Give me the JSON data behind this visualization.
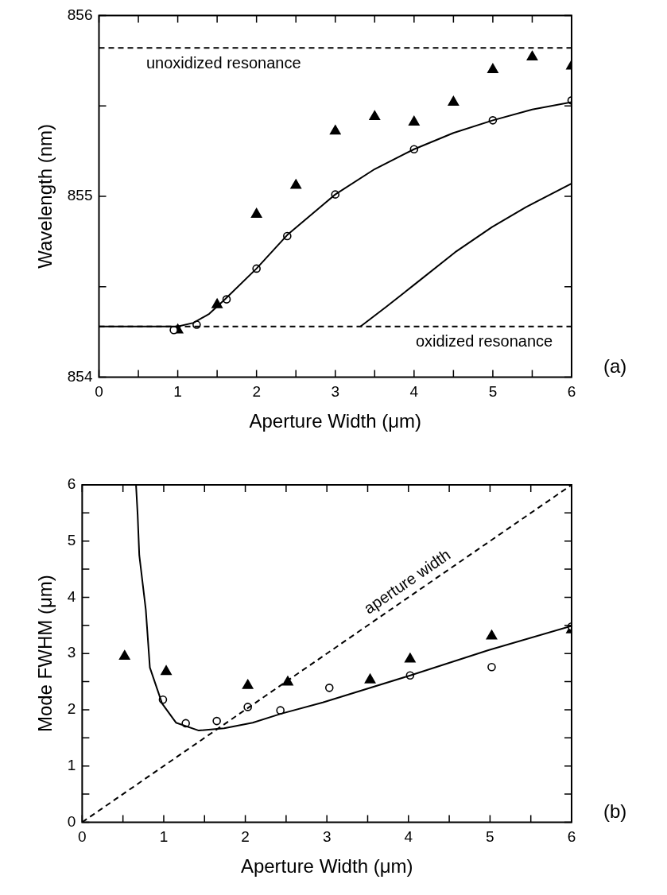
{
  "chart_data": [
    {
      "type": "scatter",
      "xlabel": "Aperture Width (μm)",
      "ylabel": "Wavelength (nm)",
      "xlim": [
        0,
        6
      ],
      "xticks": [
        0,
        {
          "value": 0.5,
          "label": null
        },
        1,
        {
          "value": 1.5,
          "label": null
        },
        2,
        {
          "value": 2.5,
          "label": null
        },
        3,
        {
          "value": 3.5,
          "label": null
        },
        4,
        {
          "value": 4.5,
          "label": null
        },
        5,
        {
          "value": 5.5,
          "label": null
        },
        6
      ],
      "ylim": [
        854,
        856
      ],
      "yticks": [
        854,
        {
          "value": 854.5,
          "label": null
        },
        855,
        {
          "value": 855.5,
          "label": null
        },
        856
      ],
      "series": [
        {
          "type": "line",
          "color": "#000000",
          "marker": "none",
          "line_style": "solid",
          "x": [
            0,
            1.0,
            1.2,
            1.4,
            1.6,
            2.0,
            2.4,
            3.0,
            3.5,
            4.0,
            4.5,
            5.0,
            5.5,
            6.0
          ],
          "values": [
            854.28,
            854.28,
            854.3,
            854.35,
            854.43,
            854.6,
            854.79,
            855.01,
            855.15,
            855.26,
            855.35,
            855.42,
            855.48,
            855.52
          ]
        },
        {
          "type": "line",
          "color": "#000000",
          "marker": "none",
          "line_style": "solid",
          "x": [
            3.32,
            3.65,
            4.0,
            4.52,
            4.99,
            5.42,
            6.0
          ],
          "values": [
            854.28,
            854.39,
            854.51,
            854.69,
            854.83,
            854.94,
            855.07
          ]
        },
        {
          "type": "scatter",
          "color": "#000000",
          "marker": "circle",
          "x": [
            0.95,
            1.24,
            1.62,
            2.0,
            2.39,
            3.0,
            4.0,
            5.0,
            6.0
          ],
          "values": [
            854.26,
            854.29,
            854.43,
            854.6,
            854.78,
            855.01,
            855.26,
            855.42,
            855.53
          ]
        },
        {
          "type": "scatter",
          "color": "#000000",
          "marker": "triangle",
          "x": [
            1.0,
            1.5,
            2.0,
            2.5,
            3.0,
            3.5,
            4.0,
            4.5,
            5.0,
            5.5,
            6.0
          ],
          "values": [
            854.26,
            854.4,
            854.9,
            855.06,
            855.36,
            855.44,
            855.41,
            855.52,
            855.7,
            855.77,
            855.72
          ]
        }
      ],
      "ref_lines": [
        {
          "axis": "y",
          "value": 855.82,
          "label": "unoxidized resonance",
          "line_style": "dashed",
          "color": "#000000"
        },
        {
          "axis": "y",
          "value": 854.28,
          "label": "oxidized resonance",
          "line_style": "dashed",
          "color": "#000000"
        }
      ],
      "annotations": [
        "(a)"
      ]
    },
    {
      "type": "scatter",
      "xlabel": "Aperture Width (μm)",
      "ylabel": "Mode FWHM (μm)",
      "xlim": [
        0,
        6
      ],
      "xticks": [
        0,
        {
          "value": 0.5,
          "label": null
        },
        1,
        {
          "value": 1.5,
          "label": null
        },
        2,
        {
          "value": 2.5,
          "label": null
        },
        3,
        {
          "value": 3.5,
          "label": null
        },
        4,
        {
          "value": 4.5,
          "label": null
        },
        5,
        {
          "value": 5.5,
          "label": null
        },
        6
      ],
      "ylim": [
        0,
        6
      ],
      "yticks": [
        0,
        {
          "value": 0.5,
          "label": null
        },
        1,
        {
          "value": 1.5,
          "label": null
        },
        2,
        {
          "value": 2.5,
          "label": null
        },
        3,
        {
          "value": 3.5,
          "label": null
        },
        4,
        {
          "value": 4.5,
          "label": null
        },
        5,
        {
          "value": 5.5,
          "label": null
        },
        6
      ],
      "series": [
        {
          "type": "line",
          "color": "#000000",
          "marker": "none",
          "line_style": "solid",
          "x": [
            0.66,
            0.68,
            0.7,
            0.78,
            0.83,
            0.98,
            1.15,
            1.43,
            1.74,
            2.09,
            2.44,
            2.95,
            4.0,
            4.98,
            6.0
          ],
          "values": [
            6,
            5.47,
            4.75,
            3.78,
            2.75,
            2.11,
            1.77,
            1.63,
            1.67,
            1.77,
            1.93,
            2.13,
            2.6,
            3.06,
            3.49
          ]
        },
        {
          "type": "line",
          "name": "aperture width",
          "color": "#000000",
          "marker": "none",
          "line_style": "dashed",
          "x": [
            0,
            6
          ],
          "values": [
            0,
            6
          ]
        },
        {
          "type": "scatter",
          "color": "#000000",
          "marker": "circle",
          "x": [
            0.99,
            1.27,
            1.65,
            2.03,
            2.43,
            3.03,
            4.02,
            5.02,
            6.0
          ],
          "values": [
            2.18,
            1.76,
            1.8,
            2.05,
            1.99,
            2.39,
            2.61,
            2.76,
            3.48
          ]
        },
        {
          "type": "scatter",
          "color": "#000000",
          "marker": "triangle",
          "x": [
            0.52,
            1.03,
            2.03,
            2.52,
            3.53,
            4.02,
            5.02,
            6.0
          ],
          "values": [
            2.95,
            2.68,
            2.43,
            2.49,
            2.53,
            2.9,
            3.31,
            3.42
          ]
        }
      ],
      "annotations": [
        "(b)"
      ]
    }
  ]
}
